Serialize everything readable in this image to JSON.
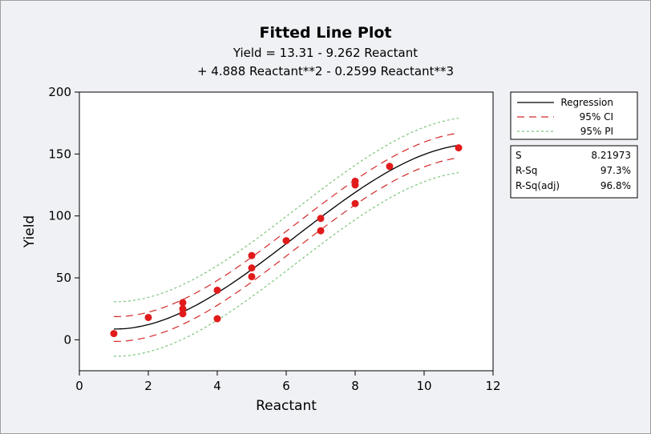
{
  "colors": {
    "background": "#eff1f4",
    "plot_area": "#ffffff",
    "regression": "#000000",
    "ci": "#d42a2a",
    "pi": "#7cc47c",
    "points": "#e11b1b"
  },
  "chart_data": {
    "type": "scatter",
    "title": "Fitted Line Plot",
    "subtitle_lines": [
      "Yield =  13.31 - 9.262 Reactant",
      "+ 4.888 Reactant**2 - 0.2599 Reactant**3"
    ],
    "xlabel": "Reactant",
    "ylabel": "Yield",
    "xlim": [
      0,
      12
    ],
    "ylim": [
      -25,
      200
    ],
    "xticks": [
      0,
      2,
      4,
      6,
      8,
      10,
      12
    ],
    "yticks": [
      0,
      50,
      100,
      150,
      200
    ],
    "grid": false,
    "legend_position": "right",
    "fit": {
      "model": "cubic",
      "intercept": 13.31,
      "b1": -9.262,
      "b2": 4.888,
      "b3": -0.2599,
      "x_range": [
        1,
        11
      ]
    },
    "points": [
      {
        "x": 1,
        "y": 5
      },
      {
        "x": 2,
        "y": 18
      },
      {
        "x": 3,
        "y": 21
      },
      {
        "x": 3,
        "y": 25
      },
      {
        "x": 3,
        "y": 30
      },
      {
        "x": 4,
        "y": 17
      },
      {
        "x": 4,
        "y": 40
      },
      {
        "x": 5,
        "y": 51
      },
      {
        "x": 5,
        "y": 58
      },
      {
        "x": 5,
        "y": 68
      },
      {
        "x": 6,
        "y": 80
      },
      {
        "x": 7,
        "y": 88
      },
      {
        "x": 7,
        "y": 98
      },
      {
        "x": 8,
        "y": 110
      },
      {
        "x": 8,
        "y": 125
      },
      {
        "x": 8,
        "y": 128
      },
      {
        "x": 9,
        "y": 140
      },
      {
        "x": 11,
        "y": 155
      }
    ],
    "legend": [
      {
        "label": "Regression",
        "style": "solid",
        "color": "#000000"
      },
      {
        "label": "95% CI",
        "style": "dashed",
        "color": "#d42a2a"
      },
      {
        "label": "95% PI",
        "style": "dotted",
        "color": "#7cc47c"
      }
    ],
    "stats": [
      {
        "label": "S",
        "value": "8.21973"
      },
      {
        "label": "R-Sq",
        "value": "97.3%"
      },
      {
        "label": "R-Sq(adj)",
        "value": "96.8%"
      }
    ],
    "ci_half_width": 10,
    "pi_half_width": 22
  }
}
